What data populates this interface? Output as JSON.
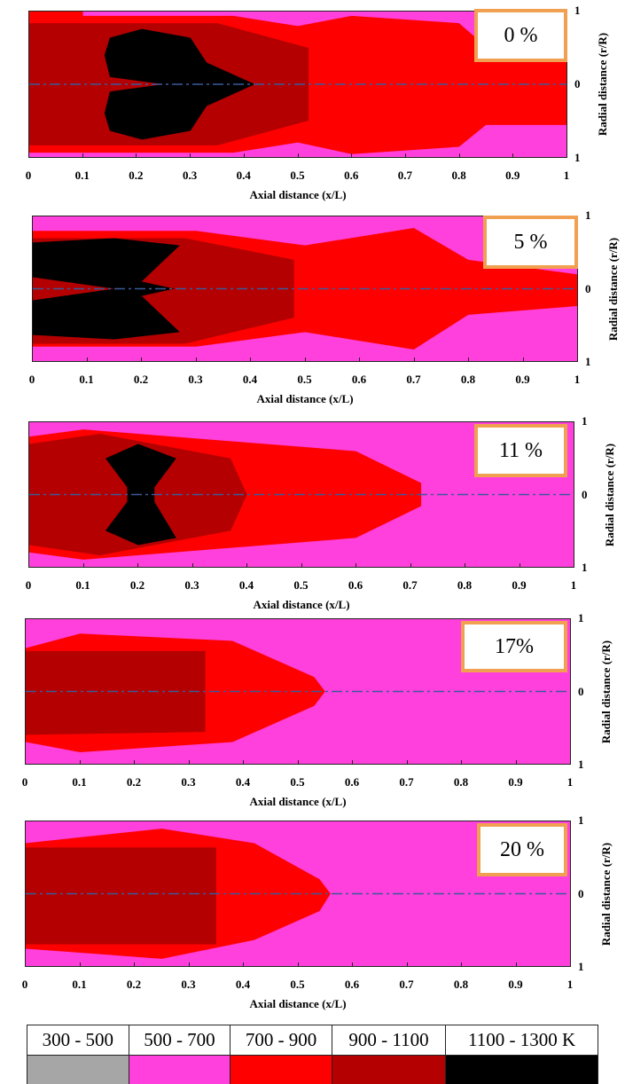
{
  "panels": [
    {
      "label": "0 %",
      "xlabel": "Axial distance (x/L)",
      "ylabel": "Radial distance (r/R)",
      "xticks": [
        0,
        0.1,
        0.2,
        0.3,
        0.4,
        0.5,
        0.6,
        0.7,
        0.8,
        0.9,
        1
      ],
      "yticks": [
        "1",
        "0",
        "1"
      ]
    },
    {
      "label": "5 %",
      "xlabel": "Axial distance (x/L)",
      "ylabel": "Radial distance (r/R)",
      "xticks": [
        0,
        0.1,
        0.2,
        0.3,
        0.4,
        0.5,
        0.6,
        0.7,
        0.8,
        0.9,
        1
      ],
      "yticks": [
        "1",
        "0",
        "1"
      ]
    },
    {
      "label": "11 %",
      "xlabel": "Axial distance (x/L)",
      "ylabel": "Radial distance (r/R)",
      "xticks": [
        0,
        0.1,
        0.2,
        0.3,
        0.4,
        0.5,
        0.6,
        0.7,
        0.8,
        0.9,
        1
      ],
      "yticks": [
        "1",
        "0",
        "1"
      ]
    },
    {
      "label": "17%",
      "xlabel": "Axial distance (x/L)",
      "ylabel": "Radial distance (r/R)",
      "xticks": [
        0,
        0.1,
        0.2,
        0.3,
        0.4,
        0.5,
        0.6,
        0.7,
        0.8,
        0.9,
        1
      ],
      "yticks": [
        "1",
        "0",
        "1"
      ]
    },
    {
      "label": "20 %",
      "xlabel": "Axial distance (x/L)",
      "ylabel": "Radial distance (r/R)",
      "xticks": [
        0,
        0.1,
        0.2,
        0.3,
        0.4,
        0.5,
        0.6,
        0.7,
        0.8,
        0.9,
        1
      ],
      "yticks": [
        "1",
        "0",
        "1"
      ]
    }
  ],
  "legend": {
    "items": [
      {
        "label": "300 - 500",
        "color": "#a6a6a6"
      },
      {
        "label": "500 - 700",
        "color": "#ff40dc"
      },
      {
        "label": "700 - 900",
        "color": "#ff0000"
      },
      {
        "label": "900 - 1100",
        "color": "#b40000"
      },
      {
        "label": "1100 - 1300 K",
        "color": "#000000"
      }
    ]
  }
}
